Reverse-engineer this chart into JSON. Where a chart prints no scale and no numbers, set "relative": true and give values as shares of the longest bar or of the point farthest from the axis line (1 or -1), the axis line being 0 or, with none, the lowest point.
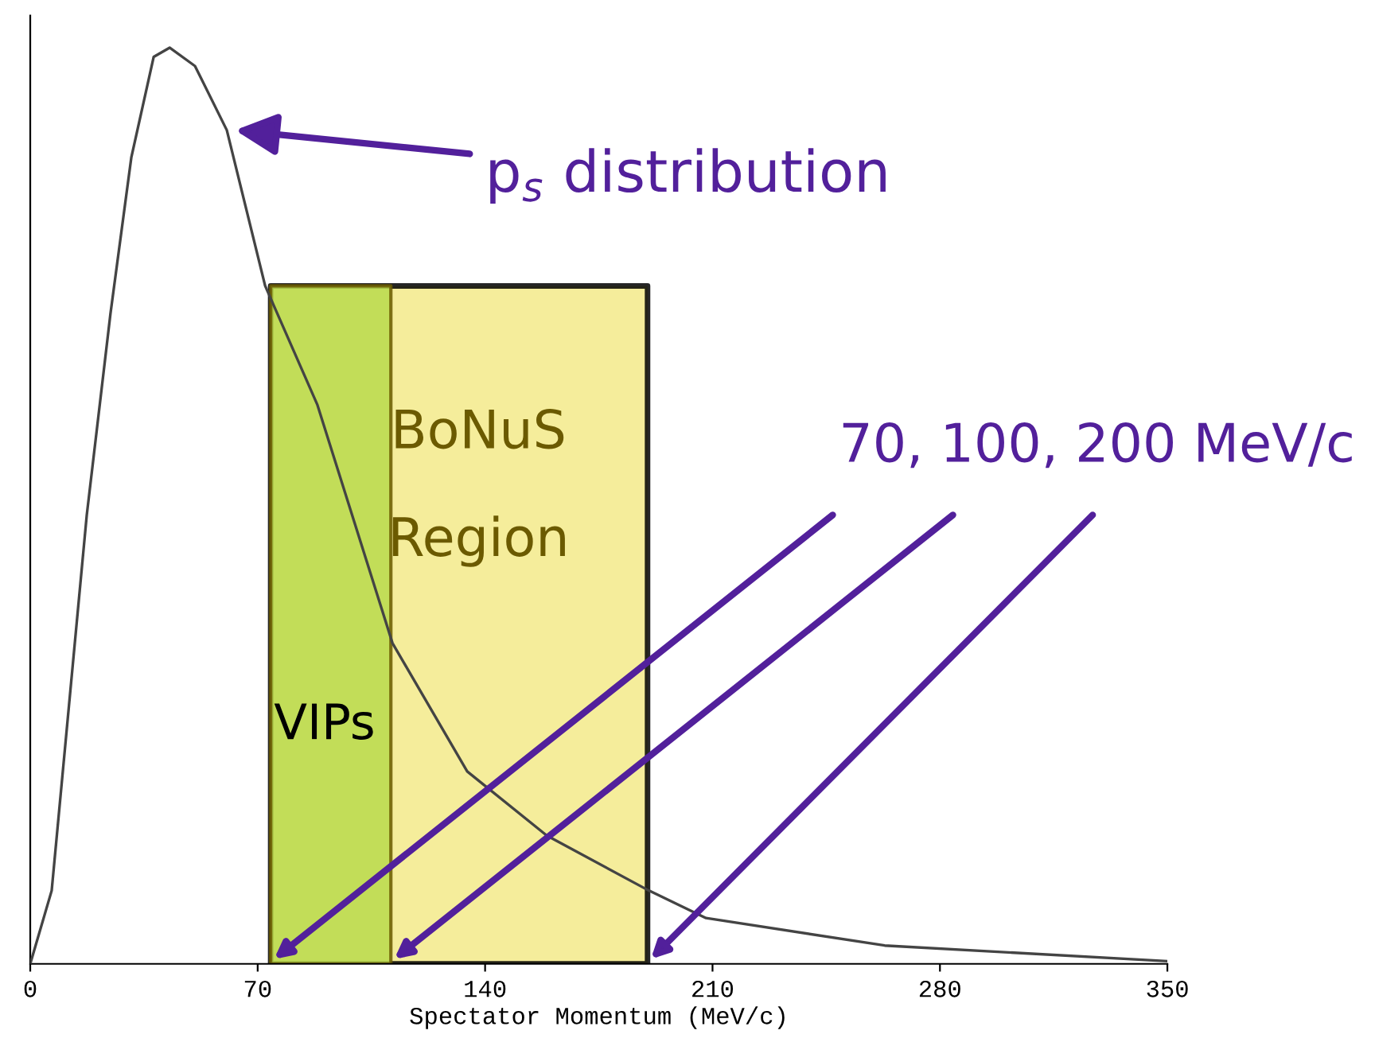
{
  "chart_data": {
    "type": "line",
    "relative": true,
    "xlabel": "Spectator Momentum (MeV/c)",
    "xlim": [
      0,
      350
    ],
    "xticks": [
      0,
      70,
      140,
      210,
      280,
      350
    ],
    "grid": false,
    "legend": false,
    "marker": "none",
    "line_style": "solid",
    "series": [
      {
        "color": "#444444",
        "x": [
          0,
          6.6,
          17.4,
          24.7,
          31.1,
          38.0,
          42.9,
          50.7,
          60.5,
          72.3,
          88.4,
          111.5,
          134.5,
          159,
          190.4,
          208,
          263,
          349.6
        ],
        "values": [
          0,
          0.08,
          0.49,
          0.71,
          0.88,
          0.99,
          1.0,
          0.98,
          0.91,
          0.74,
          0.61,
          0.35,
          0.21,
          0.14,
          0.08,
          0.05,
          0.02,
          0.003
        ]
      }
    ],
    "bands": [
      {
        "axis": "x",
        "from": 74,
        "to": 190,
        "label": "BoNuS\nRegion",
        "color": "#f3ea8a"
      },
      {
        "axis": "x",
        "from": 74,
        "to": 111,
        "label": "VIPs",
        "color": "#b8d94c"
      }
    ],
    "annotations": [
      {
        "text": "p$_{s}$ distribution",
        "x": 63,
        "y": 0.91
      },
      "70, 100, 200 MeV/c"
    ]
  }
}
